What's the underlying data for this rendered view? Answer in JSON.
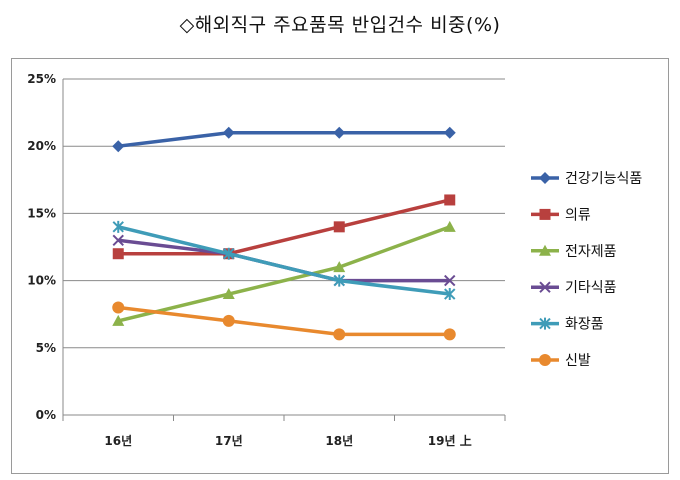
{
  "title": "◇해외직구 주요품목 반입건수 비중(%)",
  "chart_data": {
    "type": "line",
    "title": "◇해외직구 주요품목 반입건수 비중(%)",
    "xlabel": "",
    "ylabel": "",
    "categories": [
      "16년",
      "17년",
      "18년",
      "19년 上"
    ],
    "ylim": [
      0,
      25
    ],
    "yticks": [
      0,
      5,
      10,
      15,
      20,
      25
    ],
    "ytick_labels": [
      "0%",
      "5%",
      "10%",
      "15%",
      "20%",
      "25%"
    ],
    "grid": true,
    "legend": "right",
    "series": [
      {
        "name": "건강기능식품",
        "values": [
          20,
          21,
          21,
          21
        ],
        "color": "#3A62A7",
        "marker": "diamond"
      },
      {
        "name": "의류",
        "values": [
          12,
          12,
          14,
          16
        ],
        "color": "#B8403E",
        "marker": "square"
      },
      {
        "name": "전자제품",
        "values": [
          7,
          9,
          11,
          14
        ],
        "color": "#8CB24A",
        "marker": "triangle"
      },
      {
        "name": "기타식품",
        "values": [
          13,
          12,
          10,
          10
        ],
        "color": "#6A4C93",
        "marker": "x"
      },
      {
        "name": "화장품",
        "values": [
          14,
          12,
          10,
          9
        ],
        "color": "#3F9CB8",
        "marker": "star"
      },
      {
        "name": "신발",
        "values": [
          8,
          7,
          6,
          6
        ],
        "color": "#E8892E",
        "marker": "circle"
      }
    ]
  }
}
